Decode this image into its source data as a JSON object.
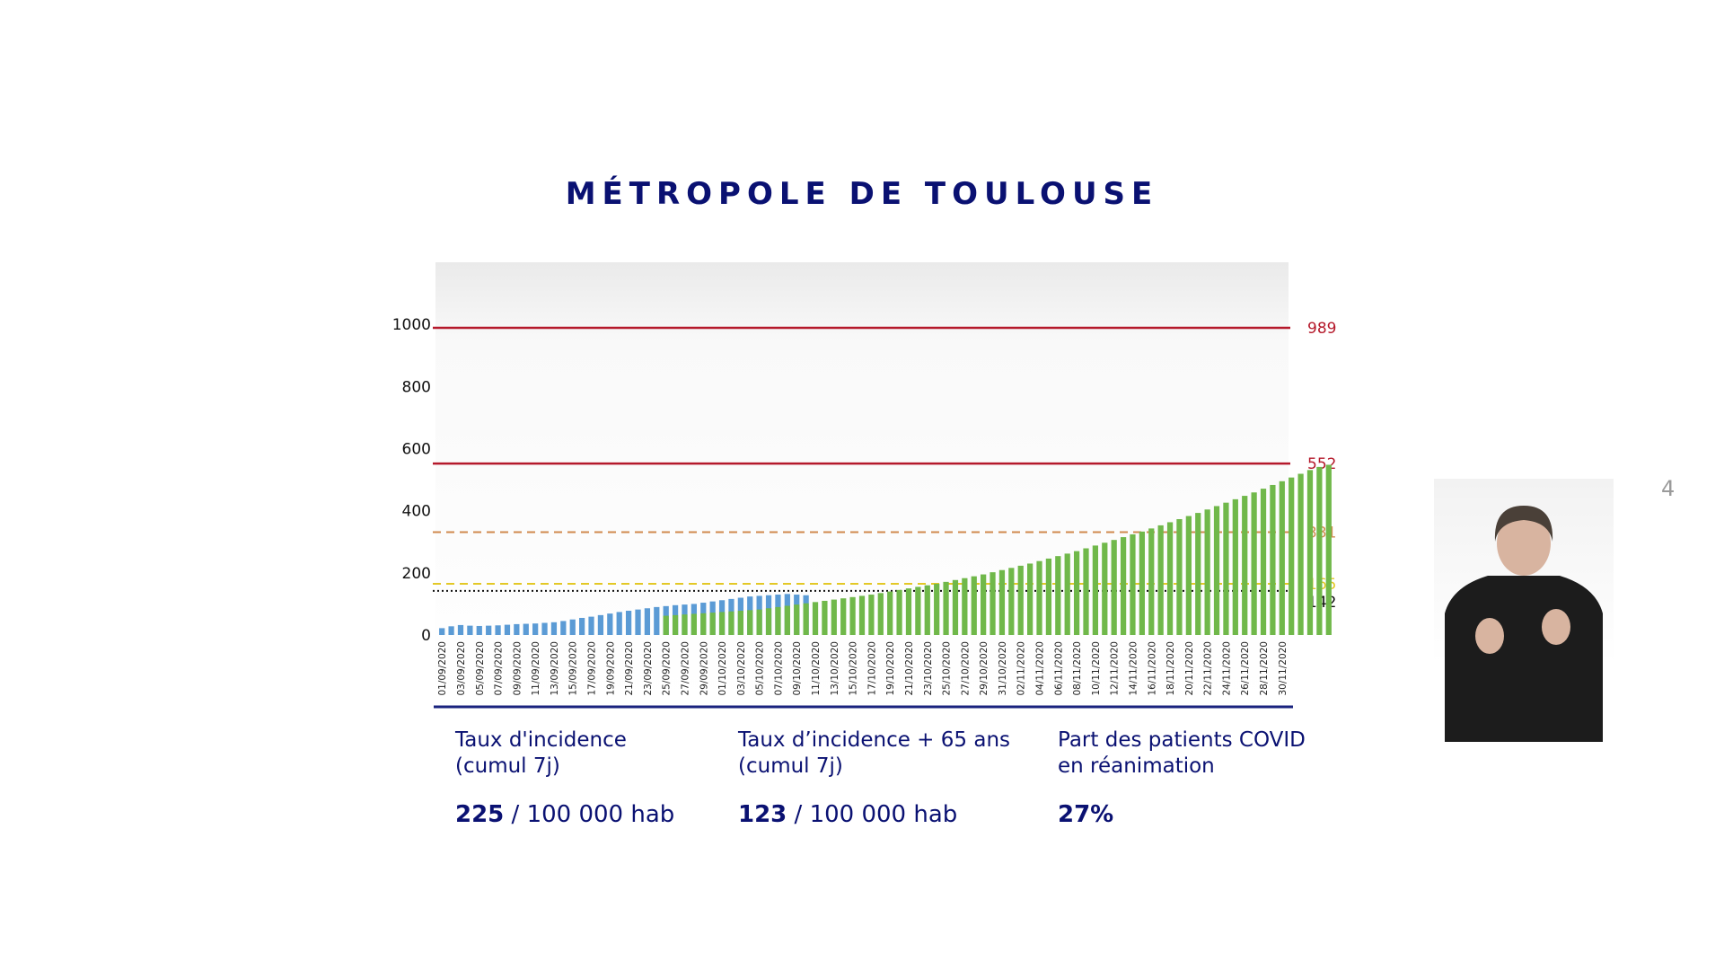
{
  "title": "MÉTROPOLE DE TOULOUSE",
  "page_number": "4",
  "stats": [
    {
      "label_line1": "Taux d'incidence",
      "label_line2": "(cumul 7j)",
      "value": "225",
      "unit": " / 100 000 hab"
    },
    {
      "label_line1": "Taux d’incidence + 65 ans",
      "label_line2": "(cumul 7j)",
      "value": "123",
      "unit": " / 100 000 hab"
    },
    {
      "label_line1": "Part des patients COVID",
      "label_line2": "en réanimation",
      "value": "27%",
      "unit": ""
    }
  ],
  "chart_data": {
    "type": "bar",
    "ylim": [
      0,
      1200
    ],
    "yticks": [
      0,
      200,
      400,
      600,
      800,
      1000
    ],
    "x_tick_labels": [
      "01/09/2020",
      "03/09/2020",
      "05/09/2020",
      "07/09/2020",
      "09/09/2020",
      "11/09/2020",
      "13/09/2020",
      "15/09/2020",
      "17/09/2020",
      "19/09/2020",
      "21/09/2020",
      "23/09/2020",
      "25/09/2020",
      "27/09/2020",
      "29/09/2020",
      "01/10/2020",
      "03/10/2020",
      "05/10/2020",
      "07/10/2020",
      "09/10/2020",
      "11/10/2020",
      "13/10/2020",
      "15/10/2020",
      "17/10/2020",
      "19/10/2020",
      "21/10/2020",
      "23/10/2020",
      "25/10/2020",
      "27/10/2020",
      "29/10/2020",
      "31/10/2020",
      "02/11/2020",
      "04/11/2020",
      "06/11/2020",
      "08/11/2020",
      "10/11/2020",
      "12/11/2020",
      "14/11/2020",
      "16/11/2020",
      "18/11/2020",
      "20/11/2020",
      "22/11/2020",
      "24/11/2020",
      "26/11/2020",
      "28/11/2020",
      "30/11/2020"
    ],
    "grid": false,
    "legend": "none",
    "series": [
      {
        "color": "#5b9bd5",
        "start": "01/09/2020",
        "values": [
          22,
          28,
          32,
          30,
          29,
          30,
          31,
          33,
          35,
          36,
          37,
          39,
          41,
          45,
          50,
          55,
          59,
          64,
          69,
          74,
          78,
          82,
          86,
          90,
          93,
          96,
          98,
          100,
          104,
          108,
          112,
          116,
          120,
          124,
          126,
          128,
          130,
          132,
          130,
          128
        ]
      },
      {
        "color": "#70b84a",
        "start": "25/09/2020",
        "values": [
          62,
          64,
          66,
          68,
          70,
          72,
          74,
          76,
          78,
          80,
          82,
          86,
          90,
          94,
          98,
          102,
          106,
          110,
          114,
          118,
          122,
          126,
          130,
          135,
          140,
          145,
          150,
          155,
          160,
          165,
          171,
          177,
          183,
          189,
          195,
          202,
          209,
          216,
          223,
          230,
          238,
          246,
          254,
          262,
          270,
          279,
          288,
          297,
          306,
          315,
          324,
          333,
          343,
          353,
          363,
          373,
          383,
          393,
          404,
          415,
          426,
          437,
          448,
          459,
          471,
          483,
          495,
          507,
          519,
          531,
          541,
          548
        ]
      }
    ],
    "reference_lines": [
      {
        "value": 989,
        "label": "989",
        "color": "#b5192b",
        "style": "solid"
      },
      {
        "value": 552,
        "label": "552",
        "color": "#b5192b",
        "style": "solid"
      },
      {
        "value": 331,
        "label": "331",
        "color": "#d08a4e",
        "style": "dashed"
      },
      {
        "value": 165,
        "label": "165",
        "color": "#e3c826",
        "style": "dashed"
      },
      {
        "value": 142,
        "label": "142",
        "color": "#111111",
        "style": "dotted"
      }
    ]
  }
}
